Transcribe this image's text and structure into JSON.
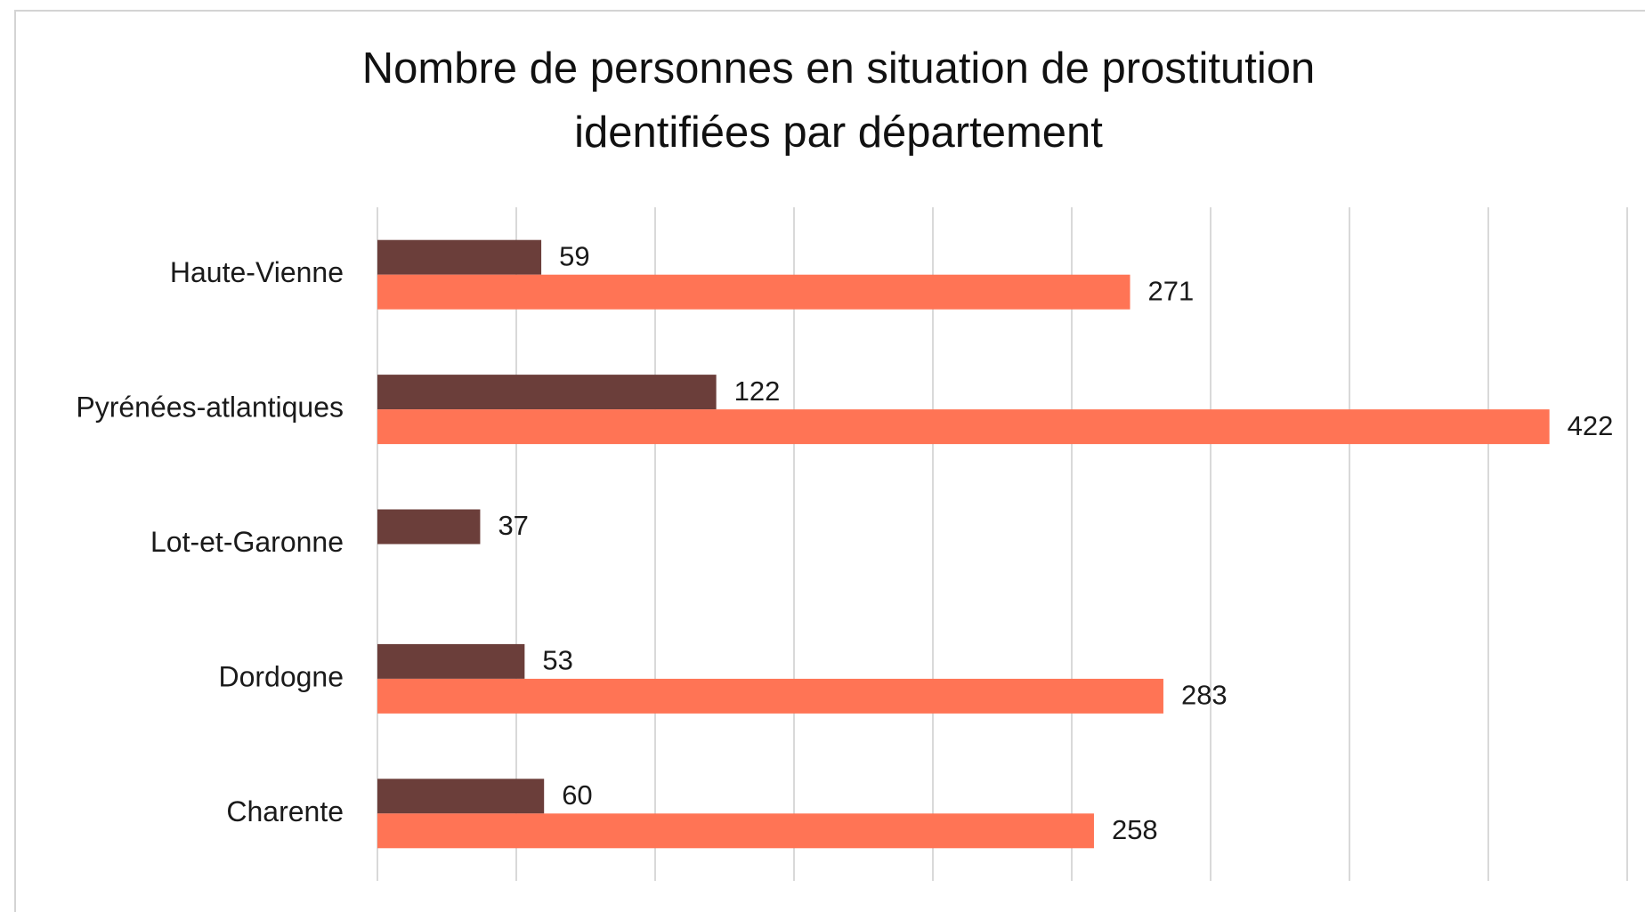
{
  "chart_data": {
    "type": "bar",
    "orientation": "horizontal",
    "title": [
      "Nombre de personnes en situation de prostitution",
      "identifiées par département"
    ],
    "categories": [
      "Haute-Vienne",
      "Pyrénées-atlantiques",
      "Lot-et-Garonne",
      "Dordogne",
      "Charente"
    ],
    "series": [
      {
        "color": "#6b3e3a",
        "values": [
          59,
          122,
          37,
          53,
          60
        ]
      },
      {
        "color": "#ff7455",
        "values": [
          271,
          422,
          null,
          283,
          258
        ]
      }
    ],
    "xlim": [
      0,
      450
    ],
    "xticks": [
      0,
      50,
      100,
      150,
      200,
      250,
      300,
      350,
      400,
      450
    ],
    "grid": true
  }
}
